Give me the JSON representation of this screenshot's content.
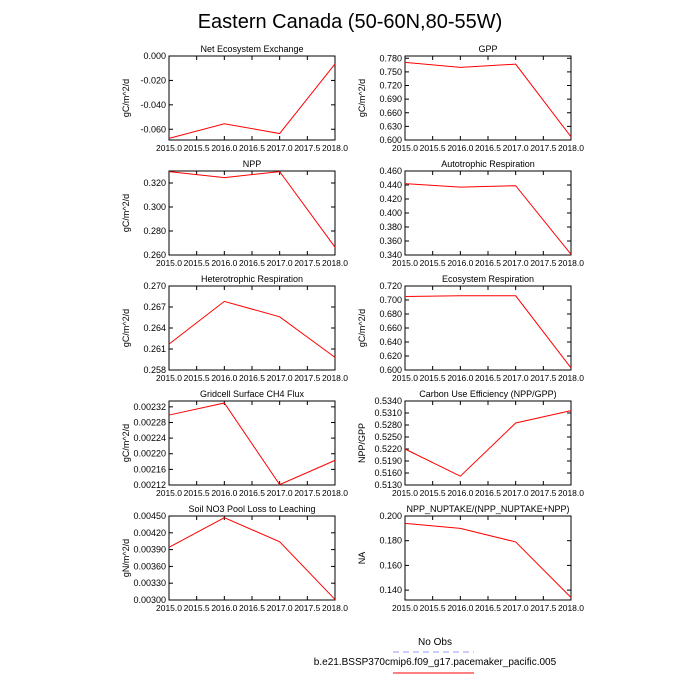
{
  "page_title": "Eastern Canada (50-60N,80-55W)",
  "legend": {
    "entries": [
      {
        "label": "No Obs",
        "color": "#9999ff",
        "dashed": true
      },
      {
        "label": "b.e21.BSSP370cmip6.f09_g17.pacemaker_pacific.005",
        "color": "#ff0000",
        "dashed": false
      }
    ]
  },
  "chart_data": [
    {
      "type": "line",
      "title": "Net Ecosystem Exchange",
      "ylabel": "gC/m^2/d",
      "x": [
        2015,
        2016,
        2017,
        2018
      ],
      "xlim": [
        2015,
        2018
      ],
      "xticks": [
        "2015.0",
        "2015.5",
        "2016.0",
        "2016.5",
        "2017.0",
        "2017.5",
        "2018.0"
      ],
      "ylim": [
        -0.0688,
        0.0
      ],
      "yticks": [
        "0.000",
        "-0.020",
        "-0.040",
        "-0.060"
      ],
      "ytick_values": [
        0.0,
        -0.02,
        -0.04,
        -0.06
      ],
      "series": [
        {
          "values": [
            -0.0675,
            -0.0555,
            -0.0635,
            -0.0065
          ],
          "color": "#ff0000"
        }
      ]
    },
    {
      "type": "line",
      "title": "GPP",
      "ylabel": "gC/m^2/d",
      "x": [
        2015,
        2016,
        2017,
        2018
      ],
      "xlim": [
        2015,
        2018
      ],
      "xticks": [
        "2015.0",
        "2015.5",
        "2016.0",
        "2016.5",
        "2017.0",
        "2017.5",
        "2018.0"
      ],
      "ylim": [
        0.6,
        0.785
      ],
      "yticks": [
        "0.780",
        "0.750",
        "0.720",
        "0.690",
        "0.660",
        "0.630",
        "0.600"
      ],
      "ytick_values": [
        0.78,
        0.75,
        0.72,
        0.69,
        0.66,
        0.63,
        0.6
      ],
      "series": [
        {
          "values": [
            0.771,
            0.76,
            0.767,
            0.607
          ],
          "color": "#ff0000"
        }
      ]
    },
    {
      "type": "line",
      "title": "NPP",
      "ylabel": "gC/m^2/d",
      "x": [
        2015,
        2016,
        2017,
        2018
      ],
      "xlim": [
        2015,
        2018
      ],
      "xticks": [
        "2015.0",
        "2015.5",
        "2016.0",
        "2016.5",
        "2017.0",
        "2017.5",
        "2018.0"
      ],
      "ylim": [
        0.26,
        0.33
      ],
      "yticks": [
        "0.320",
        "0.300",
        "0.280",
        "0.260"
      ],
      "ytick_values": [
        0.32,
        0.3,
        0.28,
        0.26
      ],
      "series": [
        {
          "values": [
            0.3295,
            0.3245,
            0.3295,
            0.2665
          ],
          "color": "#ff0000"
        }
      ]
    },
    {
      "type": "line",
      "title": "Autotrophic Respiration",
      "ylabel": "",
      "x": [
        2015,
        2016,
        2017,
        2018
      ],
      "xlim": [
        2015,
        2018
      ],
      "xticks": [
        "2015.0",
        "2015.5",
        "2016.0",
        "2016.5",
        "2017.0",
        "2017.5",
        "2018.0"
      ],
      "ylim": [
        0.34,
        0.46
      ],
      "yticks": [
        "0.460",
        "0.440",
        "0.420",
        "0.400",
        "0.380",
        "0.360",
        "0.340"
      ],
      "ytick_values": [
        0.46,
        0.44,
        0.42,
        0.4,
        0.38,
        0.36,
        0.34
      ],
      "series": [
        {
          "values": [
            0.442,
            0.437,
            0.439,
            0.341
          ],
          "color": "#ff0000"
        }
      ]
    },
    {
      "type": "line",
      "title": "Heterotrophic Respiration",
      "ylabel": "gC/m^2/d",
      "x": [
        2015,
        2016,
        2017,
        2018
      ],
      "xlim": [
        2015,
        2018
      ],
      "xticks": [
        "2015.0",
        "2015.5",
        "2016.0",
        "2016.5",
        "2017.0",
        "2017.5",
        "2018.0"
      ],
      "ylim": [
        0.258,
        0.27
      ],
      "yticks": [
        "0.270",
        "0.267",
        "0.264",
        "0.261",
        "0.258"
      ],
      "ytick_values": [
        0.27,
        0.267,
        0.264,
        0.261,
        0.258
      ],
      "series": [
        {
          "values": [
            0.2617,
            0.2678,
            0.2656,
            0.2598
          ],
          "color": "#ff0000"
        }
      ]
    },
    {
      "type": "line",
      "title": "Ecosystem Respiration",
      "ylabel": "gC/m^2/d",
      "x": [
        2015,
        2016,
        2017,
        2018
      ],
      "xlim": [
        2015,
        2018
      ],
      "xticks": [
        "2015.0",
        "2015.5",
        "2016.0",
        "2016.5",
        "2017.0",
        "2017.5",
        "2018.0"
      ],
      "ylim": [
        0.6,
        0.72
      ],
      "yticks": [
        "0.720",
        "0.700",
        "0.680",
        "0.660",
        "0.640",
        "0.620",
        "0.600"
      ],
      "ytick_values": [
        0.72,
        0.7,
        0.68,
        0.66,
        0.64,
        0.62,
        0.6
      ],
      "series": [
        {
          "values": [
            0.705,
            0.706,
            0.706,
            0.603
          ],
          "color": "#ff0000"
        }
      ]
    },
    {
      "type": "line",
      "title": "Gridcell Surface CH4 Flux",
      "ylabel": "gC/m^2/d",
      "x": [
        2015,
        2016,
        2017,
        2018
      ],
      "xlim": [
        2015,
        2018
      ],
      "xticks": [
        "2015.0",
        "2015.5",
        "2016.0",
        "2016.5",
        "2017.0",
        "2017.5",
        "2018.0"
      ],
      "ylim": [
        0.00212,
        0.002335
      ],
      "yticks": [
        "0.00232",
        "0.00228",
        "0.00224",
        "0.00220",
        "0.00216",
        "0.00212"
      ],
      "ytick_values": [
        0.00232,
        0.00228,
        0.00224,
        0.0022,
        0.00216,
        0.00212
      ],
      "series": [
        {
          "values": [
            0.002299,
            0.00233,
            0.002121,
            0.002183
          ],
          "color": "#ff0000"
        }
      ]
    },
    {
      "type": "line",
      "title": "Carbon Use Efficiency (NPP/GPP)",
      "ylabel": "NPP/GPP",
      "x": [
        2015,
        2016,
        2017,
        2018
      ],
      "xlim": [
        2015,
        2018
      ],
      "xticks": [
        "2015.0",
        "2015.5",
        "2016.0",
        "2016.5",
        "2017.0",
        "2017.5",
        "2018.0"
      ],
      "ylim": [
        0.513,
        0.534
      ],
      "yticks": [
        "0.5340",
        "0.5310",
        "0.5280",
        "0.5250",
        "0.5220",
        "0.5190",
        "0.5160",
        "0.5130"
      ],
      "ytick_values": [
        0.534,
        0.531,
        0.528,
        0.525,
        0.522,
        0.519,
        0.516,
        0.513
      ],
      "series": [
        {
          "values": [
            0.522,
            0.5152,
            0.5285,
            0.5316
          ],
          "color": "#ff0000"
        }
      ]
    },
    {
      "type": "line",
      "title": "Soil NO3 Pool Loss to Leaching",
      "ylabel": "gN/m^2/d",
      "x": [
        2015,
        2016,
        2017,
        2018
      ],
      "xlim": [
        2015,
        2018
      ],
      "xticks": [
        "2015.0",
        "2015.5",
        "2016.0",
        "2016.5",
        "2017.0",
        "2017.5",
        "2018.0"
      ],
      "ylim": [
        0.003,
        0.0045
      ],
      "yticks": [
        "0.00450",
        "0.00420",
        "0.00390",
        "0.00360",
        "0.00330",
        "0.00300"
      ],
      "ytick_values": [
        0.0045,
        0.0042,
        0.0039,
        0.0036,
        0.0033,
        0.003
      ],
      "series": [
        {
          "values": [
            0.00394,
            0.00447,
            0.00404,
            0.00301
          ],
          "color": "#ff0000"
        }
      ]
    },
    {
      "type": "line",
      "title": "NPP_NUPTAKE/(NPP_NUPTAKE+NPP)",
      "ylabel": "NA",
      "x": [
        2015,
        2016,
        2017,
        2018
      ],
      "xlim": [
        2015,
        2018
      ],
      "xticks": [
        "2015.0",
        "2015.5",
        "2016.0",
        "2016.5",
        "2017.0",
        "2017.5",
        "2018.0"
      ],
      "ylim": [
        0.132,
        0.2
      ],
      "yticks": [
        "0.200",
        "0.180",
        "0.160",
        "0.140"
      ],
      "ytick_values": [
        0.2,
        0.18,
        0.16,
        0.14
      ],
      "series": [
        {
          "values": [
            0.194,
            0.19,
            0.179,
            0.134
          ],
          "color": "#ff0000"
        }
      ]
    }
  ]
}
